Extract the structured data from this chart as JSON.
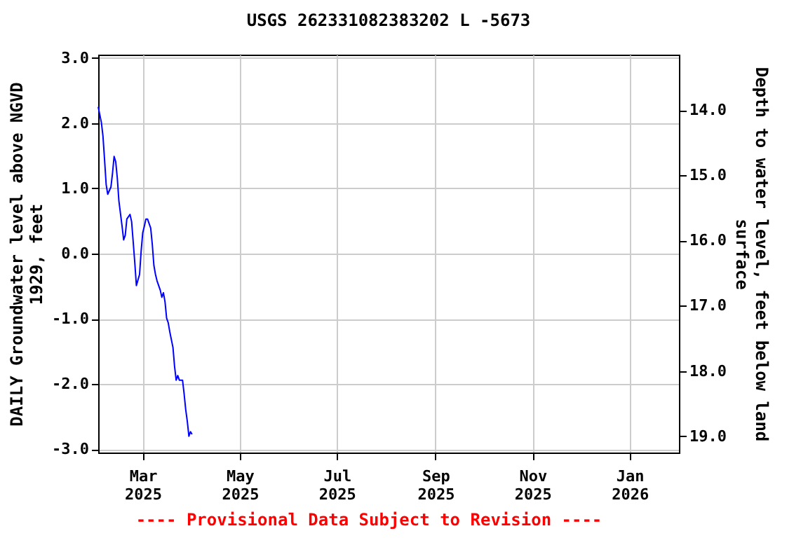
{
  "chart_data": {
    "type": "line",
    "title": "USGS 262331082383202 L  -5673",
    "ylabel": "DAILY Groundwater level above NGVD 1929, feet",
    "y2label": "Depth to water level, feet below land surface",
    "annotations": [
      "---- Provisional Data Subject to Revision ----"
    ],
    "x": [
      "2025-02-01",
      "2025-02-03",
      "2025-02-04",
      "2025-02-05",
      "2025-02-06",
      "2025-02-07",
      "2025-02-09",
      "2025-02-10",
      "2025-02-11",
      "2025-02-12",
      "2025-02-13",
      "2025-02-14",
      "2025-02-16",
      "2025-02-17",
      "2025-02-18",
      "2025-02-19",
      "2025-02-21",
      "2025-02-22",
      "2025-02-23",
      "2025-02-24",
      "2025-02-25",
      "2025-02-27",
      "2025-02-28",
      "2025-03-01",
      "2025-03-02",
      "2025-03-03",
      "2025-03-04",
      "2025-03-06",
      "2025-03-07",
      "2025-03-08",
      "2025-03-09",
      "2025-03-10",
      "2025-03-12",
      "2025-03-13",
      "2025-03-14",
      "2025-03-15",
      "2025-03-16",
      "2025-03-17",
      "2025-03-18",
      "2025-03-20",
      "2025-03-21",
      "2025-03-22",
      "2025-03-23",
      "2025-03-24",
      "2025-03-26",
      "2025-03-27",
      "2025-03-28",
      "2025-03-29",
      "2025-03-30",
      "2025-03-31",
      "2025-04-01"
    ],
    "series": [
      {
        "color": "#0000ff",
        "values": [
          2.25,
          2.01,
          1.8,
          1.44,
          1.06,
          0.91,
          1.02,
          1.23,
          1.49,
          1.41,
          1.16,
          0.81,
          0.42,
          0.21,
          0.28,
          0.53,
          0.6,
          0.49,
          0.18,
          -0.14,
          -0.49,
          -0.32,
          0.04,
          0.32,
          0.42,
          0.53,
          0.53,
          0.39,
          0.14,
          -0.18,
          -0.32,
          -0.42,
          -0.56,
          -0.67,
          -0.6,
          -0.74,
          -0.99,
          -1.06,
          -1.2,
          -1.44,
          -1.73,
          -1.94,
          -1.87,
          -1.94,
          -1.94,
          -2.15,
          -2.39,
          -2.57,
          -2.8,
          -2.73,
          -2.77
        ]
      }
    ],
    "xlim": [
      "2025-02-01",
      "2026-02-01"
    ],
    "xticks": [
      {
        "value": "2025-03-01",
        "label": "Mar 2025"
      },
      {
        "value": "2025-05-01",
        "label": "May 2025"
      },
      {
        "value": "2025-07-01",
        "label": "Jul 2025"
      },
      {
        "value": "2025-09-01",
        "label": "Sep 2025"
      },
      {
        "value": "2025-11-01",
        "label": "Nov 2025"
      },
      {
        "value": "2026-01-01",
        "label": "Jan 2026"
      }
    ],
    "ylim": [
      -3.05,
      3.05
    ],
    "yticks": [
      {
        "value": -3,
        "label": "-3.0"
      },
      {
        "value": -2,
        "label": "-2.0"
      },
      {
        "value": -1,
        "label": "-1.0"
      },
      {
        "value": 0,
        "label": "0.0"
      },
      {
        "value": 1,
        "label": "1.0"
      },
      {
        "value": 2,
        "label": "2.0"
      },
      {
        "value": 3,
        "label": "3.0"
      }
    ],
    "y2lim": [
      19.25,
      13.15
    ],
    "y2ticks": [
      {
        "value": 14,
        "label": "14.0"
      },
      {
        "value": 15,
        "label": "15.0"
      },
      {
        "value": 16,
        "label": "16.0"
      },
      {
        "value": 17,
        "label": "17.0"
      },
      {
        "value": 18,
        "label": "18.0"
      },
      {
        "value": 19,
        "label": "19.0"
      }
    ],
    "grid": true,
    "marker": "none",
    "line_style": "solid"
  }
}
